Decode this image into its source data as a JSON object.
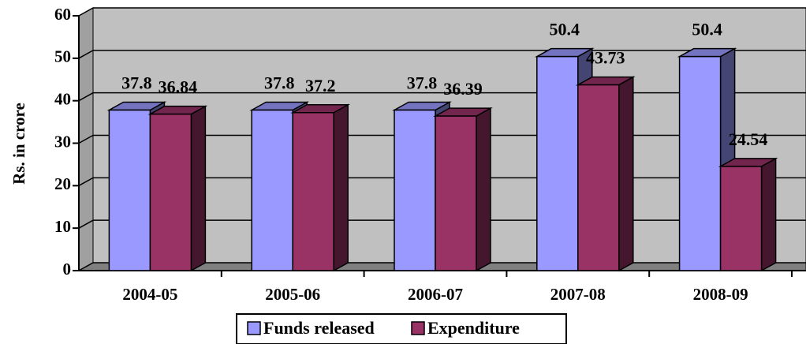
{
  "chart_data": {
    "type": "bar3d",
    "y_label": "Rs. in crore",
    "categories": [
      "2004-05",
      "2005-06",
      "2006-07",
      "2007-08",
      "2008-09"
    ],
    "series": [
      {
        "name": "Funds released",
        "color": "#9999ff",
        "values": [
          37.8,
          37.8,
          37.8,
          50.4,
          50.4
        ]
      },
      {
        "name": "Expenditure",
        "color": "#993366",
        "values": [
          36.84,
          37.2,
          36.39,
          43.73,
          24.54
        ]
      }
    ],
    "ylim": [
      0,
      60
    ],
    "yticks": [
      0,
      10,
      20,
      30,
      40,
      50,
      60
    ],
    "grid": true,
    "legend": "bottom"
  }
}
